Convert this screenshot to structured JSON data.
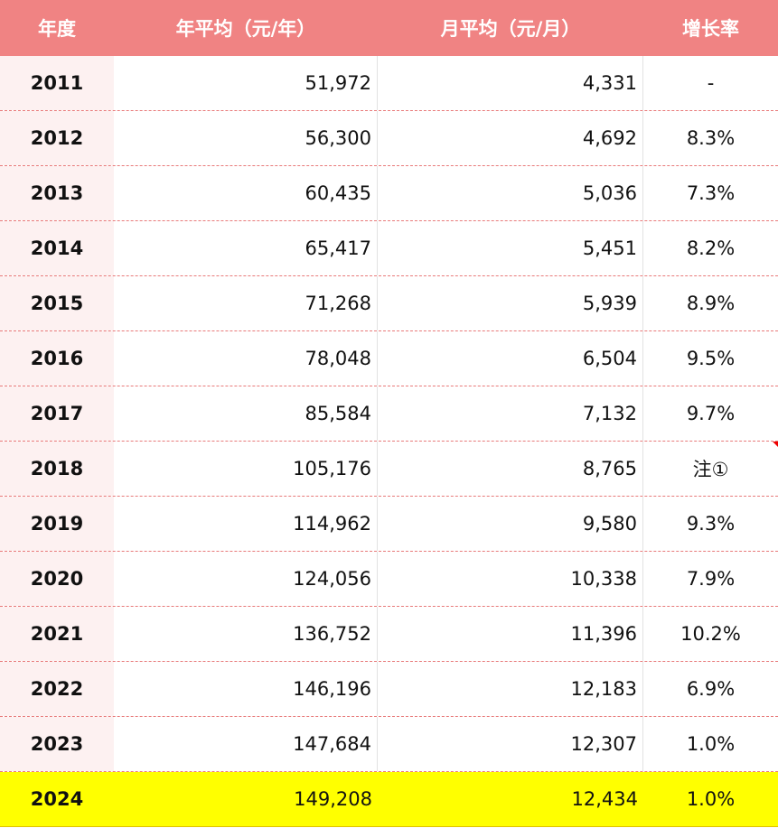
{
  "headers": [
    "年度",
    "年平均（元/年）",
    "月平均（元/月）",
    "增长率"
  ],
  "rows": [
    {
      "year": "2011",
      "annual": "51,972",
      "monthly": "4,331",
      "growth": "-"
    },
    {
      "year": "2012",
      "annual": "56,300",
      "monthly": "4,692",
      "growth": "8.3%"
    },
    {
      "year": "2013",
      "annual": "60,435",
      "monthly": "5,036",
      "growth": "7.3%"
    },
    {
      "year": "2014",
      "annual": "65,417",
      "monthly": "5,451",
      "growth": "8.2%"
    },
    {
      "year": "2015",
      "annual": "71,268",
      "monthly": "5,939",
      "growth": "8.9%"
    },
    {
      "year": "2016",
      "annual": "78,048",
      "monthly": "6,504",
      "growth": "9.5%"
    },
    {
      "year": "2017",
      "annual": "85,584",
      "monthly": "7,132",
      "growth": "9.7%"
    },
    {
      "year": "2018",
      "annual": "105,176",
      "monthly": "8,765",
      "growth": "注①",
      "has_comment": true
    },
    {
      "year": "2019",
      "annual": "114,962",
      "monthly": "9,580",
      "growth": "9.3%"
    },
    {
      "year": "2020",
      "annual": "124,056",
      "monthly": "10,338",
      "growth": "7.9%"
    },
    {
      "year": "2021",
      "annual": "136,752",
      "monthly": "11,396",
      "growth": "10.2%"
    },
    {
      "year": "2022",
      "annual": "146,196",
      "monthly": "12,183",
      "growth": "6.9%"
    },
    {
      "year": "2023",
      "annual": "147,684",
      "monthly": "12,307",
      "growth": "1.0%"
    },
    {
      "year": "2024",
      "annual": "149,208",
      "monthly": "12,434",
      "growth": "1.0%",
      "highlighted": true
    }
  ],
  "colors": {
    "header": "#f08383",
    "highlight": "#ffff00",
    "year_bg": "#fdf1f1"
  }
}
